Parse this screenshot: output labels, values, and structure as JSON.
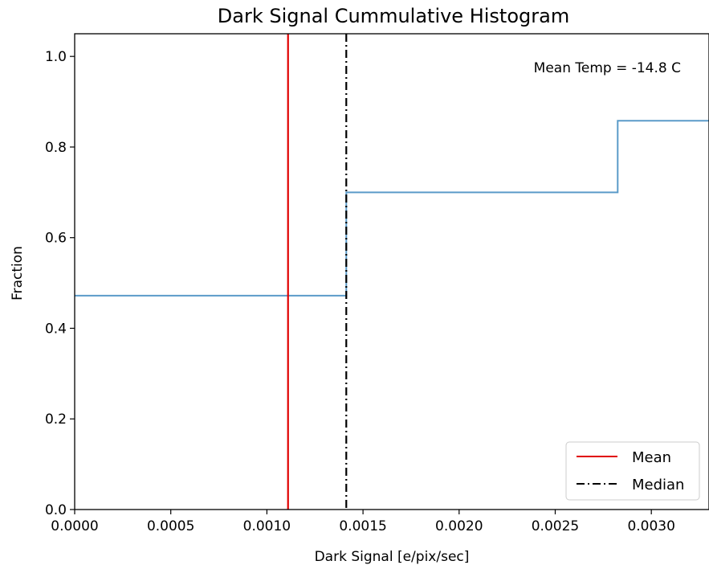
{
  "chart_data": {
    "type": "line",
    "title": "Dark Signal Cummulative Histogram",
    "xlabel": "Dark Signal [e/pix/sec]",
    "ylabel": "Fraction",
    "xlim": [
      0.0,
      0.0033
    ],
    "ylim": [
      0.0,
      1.05
    ],
    "xticks": [
      0.0,
      0.0005,
      0.001,
      0.0015,
      0.002,
      0.0025,
      0.003
    ],
    "xtick_labels": [
      "0.0000",
      "0.0005",
      "0.0010",
      "0.0015",
      "0.0020",
      "0.0025",
      "0.0030"
    ],
    "yticks": [
      0.0,
      0.2,
      0.4,
      0.6,
      0.8,
      1.0
    ],
    "ytick_labels": [
      "0.0",
      "0.2",
      "0.4",
      "0.6",
      "0.8",
      "1.0"
    ],
    "grid": false,
    "series": [
      {
        "kind": "step",
        "color": "#5b9bc9",
        "x": [
          0.0,
          0.001413,
          0.001413,
          0.002825,
          0.002825,
          0.0033
        ],
        "y": [
          0.472,
          0.472,
          0.7,
          0.7,
          0.858,
          0.858
        ]
      }
    ],
    "vlines": [
      {
        "name": "Mean",
        "x": 0.00111,
        "color": "#e00000",
        "style": "solid"
      },
      {
        "name": "Median",
        "x": 0.001413,
        "color": "#000000",
        "style": "dashdot"
      }
    ],
    "annotations": [
      {
        "text": "Mean Temp = -14.8 C",
        "position": "top-right"
      }
    ],
    "legend": {
      "position": "lower-right",
      "entries": [
        {
          "label": "Mean",
          "color": "#e00000",
          "style": "solid"
        },
        {
          "label": "Median",
          "color": "#000000",
          "style": "dashdot"
        }
      ]
    }
  }
}
